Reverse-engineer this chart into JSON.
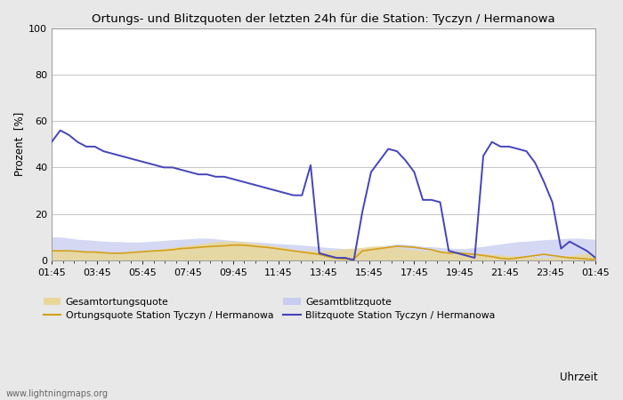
{
  "title": "Ortungs- und Blitzquoten der letzten 24h für die Station: Tyczyn / Hermanowa",
  "xlabel": "Uhrzeit",
  "ylabel": "Prozent  [%]",
  "watermark": "www.lightningmaps.org",
  "ylim": [
    0,
    100
  ],
  "x_ticks": [
    "01:45",
    "03:45",
    "05:45",
    "07:45",
    "09:45",
    "11:45",
    "13:45",
    "15:45",
    "17:45",
    "19:45",
    "21:45",
    "23:45",
    "01:45"
  ],
  "fig_bg": "#e8e8e8",
  "plot_bg": "#ffffff",
  "grid_color": "#bbbbbb",
  "fill_ortung_color": "#e8d898",
  "fill_blitz_color": "#c8ccf0",
  "line_ortung_color": "#d4a017",
  "line_blitz_color": "#4444bb",
  "legend_labels": [
    "Gesamtortungsquote",
    "Ortungsquote Station Tyczyn / Hermanowa",
    "Gesamtblitzquote",
    "Blitzquote Station Tyczyn / Hermanowa"
  ],
  "blitzquote": [
    51,
    56,
    54,
    51,
    49,
    49,
    47,
    46,
    45,
    44,
    43,
    42,
    41,
    40,
    40,
    39,
    38,
    37,
    37,
    36,
    36,
    35,
    34,
    33,
    32,
    31,
    30,
    29,
    28,
    28,
    41,
    3,
    2,
    1,
    1,
    0,
    21,
    38,
    43,
    48,
    47,
    43,
    38,
    26,
    26,
    25,
    4,
    3,
    2,
    1,
    45,
    51,
    49,
    49,
    48,
    47,
    42,
    34,
    25,
    5,
    8,
    6,
    4,
    1
  ],
  "ortungsquote": [
    4.0,
    4.0,
    4.0,
    3.8,
    3.5,
    3.5,
    3.2,
    3.0,
    3.0,
    3.2,
    3.5,
    3.8,
    4.0,
    4.2,
    4.5,
    5.0,
    5.2,
    5.5,
    5.8,
    6.0,
    6.2,
    6.5,
    6.5,
    6.2,
    5.8,
    5.5,
    5.0,
    4.5,
    4.0,
    3.5,
    3.0,
    2.5,
    1.5,
    0.8,
    0.5,
    0.5,
    4.0,
    4.5,
    5.0,
    5.5,
    6.0,
    5.8,
    5.5,
    5.0,
    4.5,
    3.5,
    3.0,
    3.2,
    2.8,
    2.5,
    2.0,
    1.5,
    0.8,
    0.5,
    1.0,
    1.5,
    2.0,
    2.5,
    2.0,
    1.5,
    1.0,
    0.8,
    0.5,
    0.3
  ],
  "gesamtblitz": [
    10,
    10,
    9.5,
    9.0,
    8.8,
    8.5,
    8.2,
    8.0,
    8.0,
    7.8,
    7.8,
    8.0,
    8.2,
    8.5,
    8.8,
    9.0,
    9.2,
    9.5,
    9.5,
    9.2,
    8.8,
    8.5,
    8.2,
    8.0,
    7.8,
    7.5,
    7.2,
    7.0,
    6.8,
    6.5,
    6.2,
    5.8,
    5.5,
    5.2,
    5.0,
    4.8,
    5.0,
    5.5,
    6.0,
    6.5,
    7.0,
    6.8,
    6.5,
    6.0,
    5.8,
    5.5,
    5.2,
    5.0,
    5.0,
    5.5,
    6.0,
    6.5,
    7.0,
    7.5,
    8.0,
    8.2,
    8.5,
    8.8,
    9.0,
    9.2,
    9.5,
    9.5,
    9.2,
    9.0
  ],
  "gesamtortung": [
    4.0,
    4.0,
    3.8,
    3.8,
    3.5,
    3.5,
    3.2,
    3.0,
    3.2,
    3.5,
    4.0,
    4.2,
    4.5,
    5.0,
    5.5,
    6.0,
    6.5,
    7.0,
    7.5,
    8.0,
    8.2,
    8.2,
    8.0,
    7.5,
    7.0,
    6.5,
    6.0,
    5.5,
    4.5,
    4.2,
    4.0,
    4.0,
    4.2,
    4.5,
    5.0,
    5.2,
    5.5,
    6.0,
    6.2,
    5.8,
    5.5,
    5.0,
    4.5,
    4.0,
    4.2,
    4.0,
    3.8,
    3.5,
    3.2,
    3.0,
    2.8,
    2.5,
    2.2,
    2.0,
    1.8,
    1.5,
    1.2,
    1.0,
    1.2,
    1.5,
    2.0,
    2.5,
    3.0,
    2.0
  ]
}
